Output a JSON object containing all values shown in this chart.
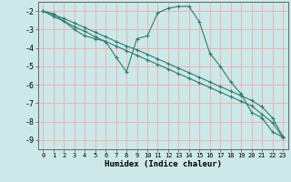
{
  "xlabel": "Humidex (Indice chaleur)",
  "background_color": "#cce8e8",
  "grid_color": "#f0aaaa",
  "line_color": "#2d7d6e",
  "xlim": [
    -0.5,
    23.5
  ],
  "ylim": [
    -9.5,
    -1.5
  ],
  "yticks": [
    -9,
    -8,
    -7,
    -6,
    -5,
    -4,
    -3,
    -2
  ],
  "xticks": [
    0,
    1,
    2,
    3,
    4,
    5,
    6,
    7,
    8,
    9,
    10,
    11,
    12,
    13,
    14,
    15,
    16,
    17,
    18,
    19,
    20,
    21,
    22,
    23
  ],
  "series0_x": [
    0,
    1,
    2,
    3,
    4,
    5,
    6,
    7,
    8,
    9,
    10,
    11,
    12,
    13,
    14,
    15,
    16,
    17,
    18,
    19,
    20,
    21,
    22,
    23
  ],
  "series0_y": [
    -2.0,
    -2.15,
    -2.55,
    -3.0,
    -3.35,
    -3.5,
    -3.65,
    -4.5,
    -5.3,
    -3.5,
    -3.35,
    -2.1,
    -1.85,
    -1.75,
    -1.75,
    -2.6,
    -4.3,
    -5.0,
    -5.85,
    -6.5,
    -7.5,
    -7.8,
    -8.55,
    -8.85
  ],
  "series1_x": [
    0,
    1,
    2,
    3,
    4,
    5,
    6,
    7,
    8,
    9,
    10,
    11,
    12,
    13,
    14,
    15,
    16,
    17,
    18,
    19,
    20,
    21,
    22,
    23
  ],
  "series1_y": [
    -2.0,
    -2.2,
    -2.4,
    -2.65,
    -2.9,
    -3.15,
    -3.4,
    -3.65,
    -3.9,
    -4.1,
    -4.35,
    -4.6,
    -4.85,
    -5.1,
    -5.35,
    -5.6,
    -5.85,
    -6.1,
    -6.35,
    -6.6,
    -6.85,
    -7.2,
    -7.8,
    -8.8
  ],
  "series2_x": [
    0,
    1,
    2,
    3,
    4,
    5,
    6,
    7,
    8,
    9,
    10,
    11,
    12,
    13,
    14,
    15,
    16,
    17,
    18,
    19,
    20,
    21,
    22,
    23
  ],
  "series2_y": [
    -2.0,
    -2.3,
    -2.55,
    -2.85,
    -3.1,
    -3.4,
    -3.65,
    -3.9,
    -4.15,
    -4.4,
    -4.65,
    -4.9,
    -5.15,
    -5.4,
    -5.65,
    -5.9,
    -6.15,
    -6.4,
    -6.65,
    -6.9,
    -7.15,
    -7.6,
    -8.05,
    -8.88
  ]
}
